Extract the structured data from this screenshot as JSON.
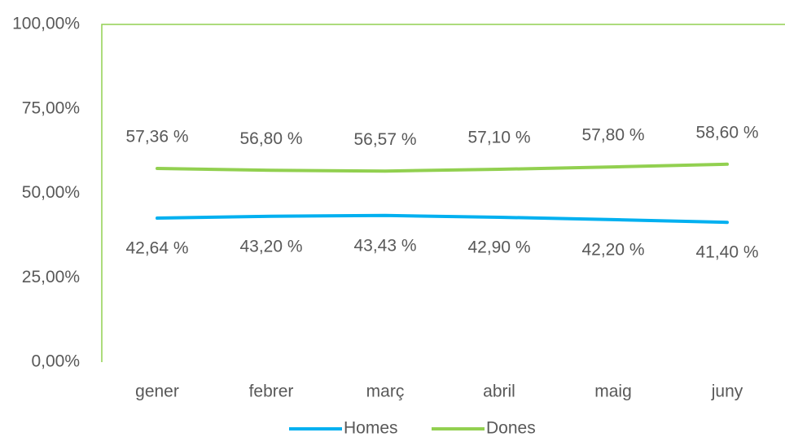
{
  "chart_data": {
    "type": "line",
    "categories": [
      "gener",
      "febrer",
      "març",
      "abril",
      "maig",
      "juny"
    ],
    "series": [
      {
        "name": "Homes",
        "color": "#00b0f0",
        "values": [
          42.64,
          43.2,
          43.43,
          42.9,
          42.2,
          41.4
        ],
        "value_labels": [
          "42,64 %",
          "43,20 %",
          "43,43 %",
          "42,90 %",
          "42,20 %",
          "41,40 %"
        ]
      },
      {
        "name": "Dones",
        "color": "#92d050",
        "values": [
          57.36,
          56.8,
          56.57,
          57.1,
          57.8,
          58.6
        ],
        "value_labels": [
          "57,36 %",
          "56,80 %",
          "56,57 %",
          "57,10 %",
          "57,80 %",
          "58,60 %"
        ]
      }
    ],
    "ylim": [
      0,
      100
    ],
    "yticks": [
      {
        "value": 0,
        "label": "0,00%"
      },
      {
        "value": 25,
        "label": "25,00%"
      },
      {
        "value": 50,
        "label": "50,00%"
      },
      {
        "value": 75,
        "label": "75,00%"
      },
      {
        "value": 100,
        "label": "100,00%"
      }
    ],
    "grid": false
  }
}
